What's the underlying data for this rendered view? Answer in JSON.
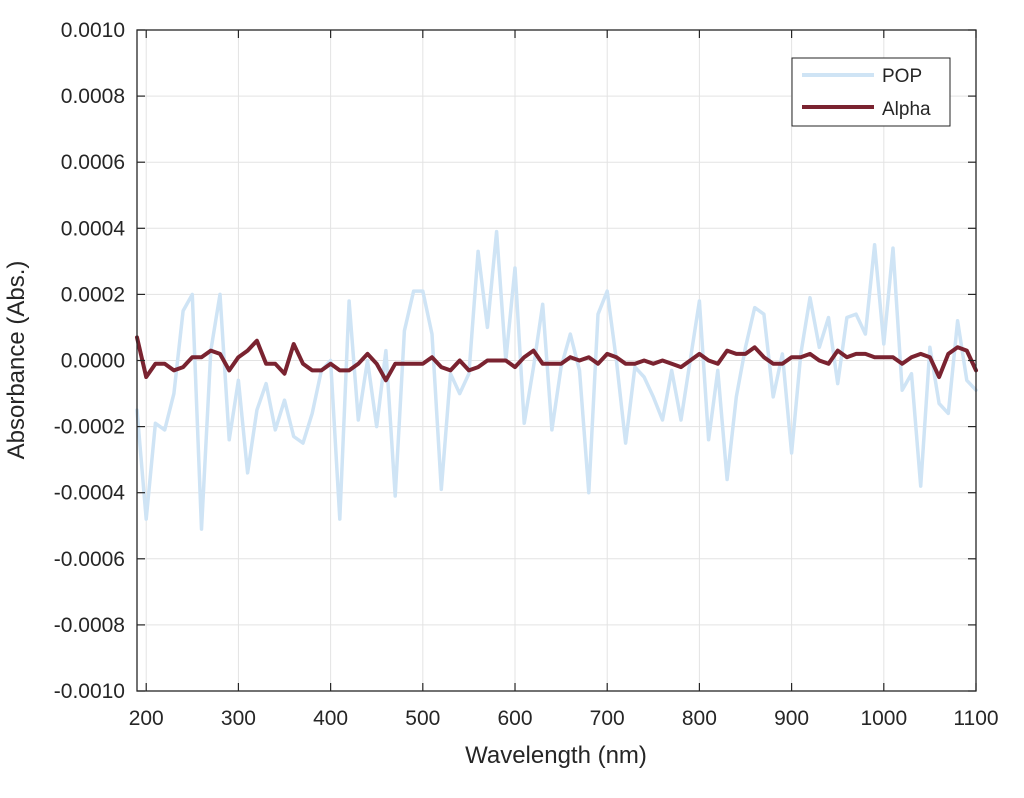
{
  "chart_data": {
    "type": "line",
    "title": "",
    "xlabel": "Wavelength (nm)",
    "ylabel": "Absorbance (Abs.)",
    "xlim": [
      190,
      1100
    ],
    "ylim": [
      -0.001,
      0.001
    ],
    "x_ticks": [
      200,
      300,
      400,
      500,
      600,
      700,
      800,
      900,
      1000,
      1100
    ],
    "x_tick_labels": [
      "200",
      "300",
      "400",
      "500",
      "600",
      "700",
      "800",
      "900",
      "1000",
      "1100"
    ],
    "y_ticks": [
      -0.001,
      -0.0008,
      -0.0006,
      -0.0004,
      -0.0002,
      0,
      0.0002,
      0.0004,
      0.0006,
      0.0008,
      0.001
    ],
    "y_tick_labels": [
      "-0.0010",
      "-0.0008",
      "-0.0006",
      "-0.0004",
      "-0.0002",
      "0.0000",
      "0.0002",
      "0.0004",
      "0.0006",
      "0.0008",
      "0.0010"
    ],
    "grid": true,
    "legend_position": "top-right",
    "x": [
      190,
      200,
      210,
      220,
      230,
      240,
      250,
      260,
      270,
      280,
      290,
      300,
      310,
      320,
      330,
      340,
      350,
      360,
      370,
      380,
      390,
      400,
      410,
      420,
      430,
      440,
      450,
      460,
      470,
      480,
      490,
      500,
      510,
      520,
      530,
      540,
      550,
      560,
      570,
      580,
      590,
      600,
      610,
      620,
      630,
      640,
      650,
      660,
      670,
      680,
      690,
      700,
      710,
      720,
      730,
      740,
      750,
      760,
      770,
      780,
      790,
      800,
      810,
      820,
      830,
      840,
      850,
      860,
      870,
      880,
      890,
      900,
      910,
      920,
      930,
      940,
      950,
      960,
      970,
      980,
      990,
      1000,
      1010,
      1020,
      1030,
      1040,
      1050,
      1060,
      1070,
      1080,
      1090,
      1100
    ],
    "series": [
      {
        "name": "POP",
        "color": "#cfe4f5",
        "values": [
          -0.00015,
          -0.00048,
          -0.00019,
          -0.00021,
          -0.0001,
          0.00015,
          0.0002,
          -0.00051,
          3e-05,
          0.0002,
          -0.00024,
          -6e-05,
          -0.00034,
          -0.00015,
          -7e-05,
          -0.00021,
          -0.00012,
          -0.00023,
          -0.00025,
          -0.00016,
          -3e-05,
          0.0,
          -0.00048,
          0.00018,
          -0.00018,
          0.0,
          -0.0002,
          3e-05,
          -0.00041,
          9e-05,
          0.00021,
          0.00021,
          8e-05,
          -0.00039,
          -4e-05,
          -0.0001,
          -4e-05,
          0.00033,
          0.0001,
          0.00039,
          0.0,
          0.00028,
          -0.00019,
          -2e-05,
          0.00017,
          -0.00021,
          -2e-05,
          8e-05,
          -3e-05,
          -0.0004,
          0.00014,
          0.00021,
          0.0,
          -0.00025,
          -2e-05,
          -5e-05,
          -0.00011,
          -0.00018,
          -3e-05,
          -0.00018,
          0.0,
          0.00018,
          -0.00024,
          -3e-05,
          -0.00036,
          -0.00011,
          4e-05,
          0.00016,
          0.00014,
          -0.00011,
          2e-05,
          -0.00028,
          2e-05,
          0.00019,
          4e-05,
          0.00013,
          -7e-05,
          0.00013,
          0.00014,
          8e-05,
          0.00035,
          5e-05,
          0.00034,
          -9e-05,
          -4e-05,
          -0.00038,
          4e-05,
          -0.00013,
          -0.00016,
          0.00012,
          -6e-05,
          -9e-05
        ]
      },
      {
        "name": "Alpha",
        "color": "#7a2330",
        "values": [
          7e-05,
          -5e-05,
          -1e-05,
          -1e-05,
          -3e-05,
          -2e-05,
          1e-05,
          1e-05,
          3e-05,
          2e-05,
          -3e-05,
          1e-05,
          3e-05,
          6e-05,
          -1e-05,
          -1e-05,
          -4e-05,
          5e-05,
          -1e-05,
          -3e-05,
          -3e-05,
          -1e-05,
          -3e-05,
          -3e-05,
          -1e-05,
          2e-05,
          -1e-05,
          -6e-05,
          -1e-05,
          -1e-05,
          -1e-05,
          -1e-05,
          1e-05,
          -2e-05,
          -3e-05,
          0.0,
          -3e-05,
          -2e-05,
          0.0,
          0.0,
          0.0,
          -2e-05,
          1e-05,
          3e-05,
          -1e-05,
          -1e-05,
          -1e-05,
          1e-05,
          0.0,
          1e-05,
          -1e-05,
          2e-05,
          1e-05,
          -1e-05,
          -1e-05,
          0.0,
          -1e-05,
          0.0,
          -1e-05,
          -2e-05,
          0.0,
          2e-05,
          0.0,
          -1e-05,
          3e-05,
          2e-05,
          2e-05,
          4e-05,
          1e-05,
          -1e-05,
          -1e-05,
          1e-05,
          1e-05,
          2e-05,
          0.0,
          -1e-05,
          3e-05,
          1e-05,
          2e-05,
          2e-05,
          1e-05,
          1e-05,
          1e-05,
          -1e-05,
          1e-05,
          2e-05,
          1e-05,
          -5e-05,
          2e-05,
          4e-05,
          3e-05,
          -3e-05
        ]
      }
    ]
  }
}
